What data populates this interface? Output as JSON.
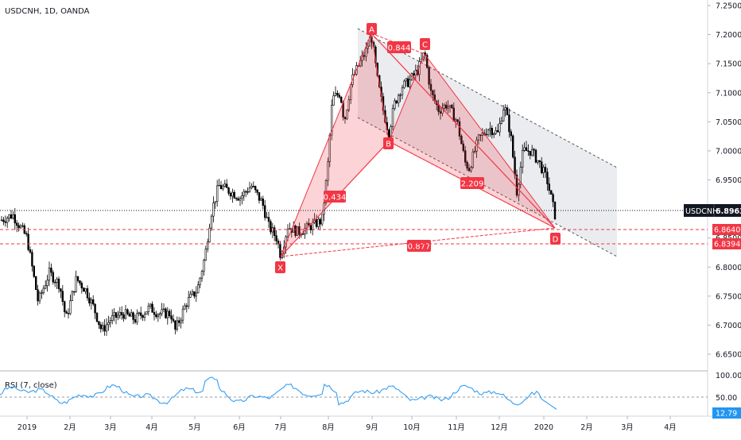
{
  "header": {
    "title": "USDCNH, 1D, OANDA"
  },
  "price_axis": {
    "ticks": [
      "7.25000",
      "7.20000",
      "7.15000",
      "7.10000",
      "7.05000",
      "7.00000",
      "6.95000",
      "6.90000",
      "6.85000",
      "6.80000",
      "6.75000",
      "6.70000",
      "6.65000"
    ],
    "current_label": "USDCNH",
    "current_value": "6.89636",
    "level1_value": "6.86400",
    "level2_value": "6.83940"
  },
  "rsi": {
    "title": "RSI (7, close)",
    "ticks": [
      "100.00",
      "50.00"
    ],
    "value": "12.79"
  },
  "time_axis": {
    "labels": [
      "2019",
      "2月",
      "3月",
      "4月",
      "5月",
      "6月",
      "7月",
      "8月",
      "9月",
      "10月",
      "11月",
      "12月",
      "2020",
      "2月",
      "3月",
      "4月"
    ]
  },
  "pattern": {
    "points": {
      "X": "X",
      "A": "A",
      "B": "B",
      "C": "C",
      "D": "D"
    },
    "ratios": {
      "xb": "0.434",
      "ac": "0.844",
      "bd": "2.209",
      "xd": "0.877"
    }
  },
  "colors": {
    "pattern_red": "#f23645",
    "rsi_line": "#2196f3",
    "channel": "#d1d4dc",
    "candles": "#000000"
  },
  "chart_data": {
    "type": "candlestick",
    "symbol": "USDCNH",
    "interval": "1D",
    "source": "OANDA",
    "ylim": [
      6.65,
      7.25
    ],
    "current_price": 6.89636,
    "levels": [
      6.864,
      6.8394
    ],
    "approx_closes_by_month": {
      "2019-01": 6.86,
      "2019-02": 6.71,
      "2019-03": 6.72,
      "2019-04": 6.72,
      "2019-05": 6.9,
      "2019-06": 6.93,
      "2019-07": 6.88,
      "2019-08": 7.1,
      "2019-09": 7.13,
      "2019-10": 7.06,
      "2019-11": 7.02,
      "2019-12": 7.05,
      "2020-01": 6.9
    },
    "harmonic_pattern": {
      "X": 6.815,
      "A": 7.2,
      "B": 7.025,
      "C": 7.18,
      "D": 6.865,
      "ratios": [
        0.434,
        0.844,
        2.209,
        0.877
      ]
    },
    "rsi": {
      "period": 7,
      "source": "close",
      "last": 12.79
    }
  }
}
